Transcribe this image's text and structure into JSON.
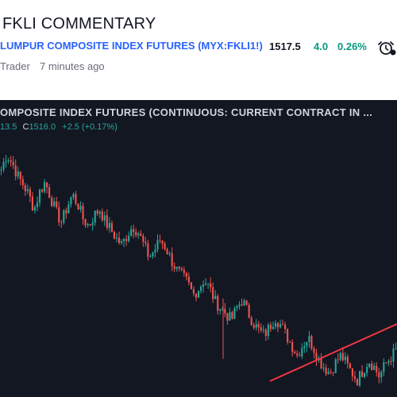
{
  "header": {
    "title": "FKLI COMMENTARY",
    "symbol_name": "LUMPUR COMPOSITE INDEX FUTURES",
    "symbol_ticker": "(MYX:FKLI1!)",
    "price": "1517.5",
    "change": "4.0",
    "change_pct": "0.26%",
    "author": "Trader",
    "time_ago": "7 minutes ago"
  },
  "chart": {
    "title": "OMPOSITE INDEX FUTURES (CONTINUOUS: CURRENT CONTRACT IN ...",
    "ohlc_open": "13.5",
    "ohlc_close_label": "C",
    "ohlc_close": "1516.0",
    "ohlc_change": "+2.5 (+0.17%)"
  },
  "colors": {
    "up": "#26a69a",
    "down": "#ef5350",
    "trendline": "#f23645",
    "background": "#131722",
    "link": "#2962ff",
    "positive": "#089981"
  },
  "chart_data": {
    "type": "candlestick",
    "close_series": [
      1660,
      1672,
      1665,
      1655,
      1648,
      1640,
      1628,
      1642,
      1650,
      1638,
      1626,
      1618,
      1630,
      1640,
      1632,
      1620,
      1615,
      1624,
      1628,
      1618,
      1612,
      1605,
      1600,
      1608,
      1615,
      1610,
      1600,
      1590,
      1596,
      1604,
      1598,
      1588,
      1580,
      1575,
      1570,
      1560,
      1565,
      1572,
      1566,
      1555,
      1550,
      1545,
      1540,
      1550,
      1556,
      1546,
      1538,
      1532,
      1528,
      1535,
      1542,
      1536,
      1528,
      1520,
      1512,
      1520,
      1526,
      1518,
      1508,
      1502,
      1498,
      1506,
      1512,
      1505,
      1498,
      1492,
      1500,
      1508,
      1503,
      1495,
      1504,
      1510,
      1516
    ],
    "trendline": "rising support line drawn in red across recent lows"
  }
}
